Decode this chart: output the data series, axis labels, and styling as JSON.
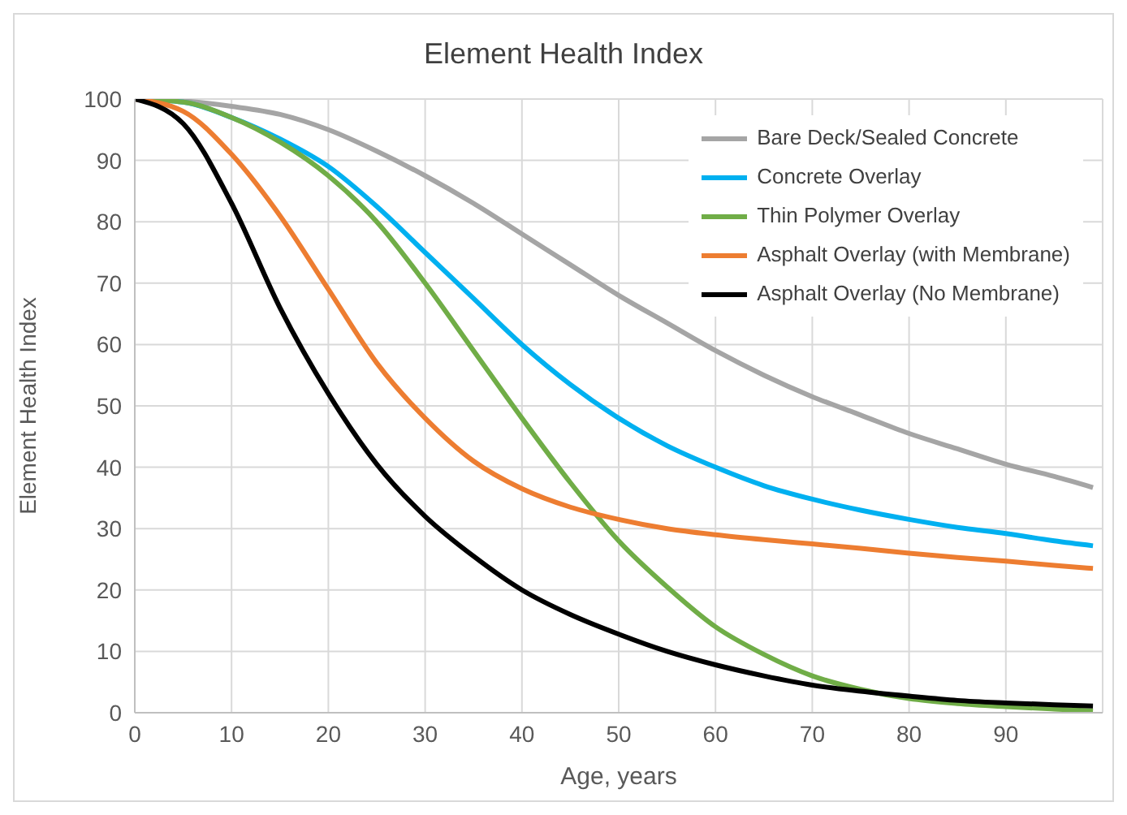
{
  "chart_data": {
    "type": "line",
    "title": "Element Health Index",
    "xlabel": "Age, years",
    "ylabel": "Element Health Index",
    "x": [
      0,
      5,
      10,
      15,
      20,
      25,
      30,
      35,
      40,
      45,
      50,
      55,
      60,
      65,
      70,
      75,
      80,
      85,
      90,
      95,
      99
    ],
    "series": [
      {
        "name": "Bare Deck/Sealed Concrete",
        "color": "#a5a5a5",
        "values": [
          100,
          99.7,
          98.8,
          97.5,
          95,
          91.5,
          87.5,
          83,
          78,
          73,
          68,
          63.5,
          59,
          55,
          51.5,
          48.5,
          45.5,
          43,
          40.5,
          38.5,
          36.7
        ]
      },
      {
        "name": "Concrete Overlay",
        "color": "#00b0f0",
        "values": [
          100,
          99.5,
          97,
          93.5,
          89,
          82.5,
          75,
          67.5,
          60,
          53.5,
          48,
          43.5,
          40,
          37,
          34.8,
          33,
          31.5,
          30.2,
          29.2,
          28,
          27.2
        ]
      },
      {
        "name": "Thin Polymer Overlay",
        "color": "#70ad47",
        "values": [
          100,
          99.5,
          97,
          93,
          87.5,
          80,
          70,
          59,
          48,
          37.5,
          28,
          20.5,
          14,
          9.5,
          6,
          3.8,
          2.3,
          1.5,
          1,
          0.6,
          0.3
        ]
      },
      {
        "name": "Asphalt Overlay (with Membrane)",
        "color": "#ed7d31",
        "values": [
          100,
          98,
          91,
          81,
          69,
          57,
          48,
          41,
          36.5,
          33.5,
          31.5,
          30,
          29,
          28.2,
          27.5,
          26.8,
          26,
          25.3,
          24.7,
          24,
          23.5
        ]
      },
      {
        "name": "Asphalt Overlay (No Membrane)",
        "color": "#000000",
        "values": [
          100,
          96,
          83,
          66,
          52,
          40.5,
          32,
          25.5,
          20,
          16,
          12.8,
          10,
          7.8,
          6,
          4.5,
          3.5,
          2.7,
          2,
          1.6,
          1.3,
          1.1
        ]
      }
    ],
    "xlim": [
      0,
      100
    ],
    "xticks": [
      0,
      10,
      20,
      30,
      40,
      50,
      60,
      70,
      80,
      90
    ],
    "ylim": [
      0,
      100
    ],
    "yticks": [
      0,
      10,
      20,
      30,
      40,
      50,
      60,
      70,
      80,
      90,
      100
    ],
    "grid": true,
    "legend": "top right",
    "marker": "none",
    "line_style": "solid"
  }
}
